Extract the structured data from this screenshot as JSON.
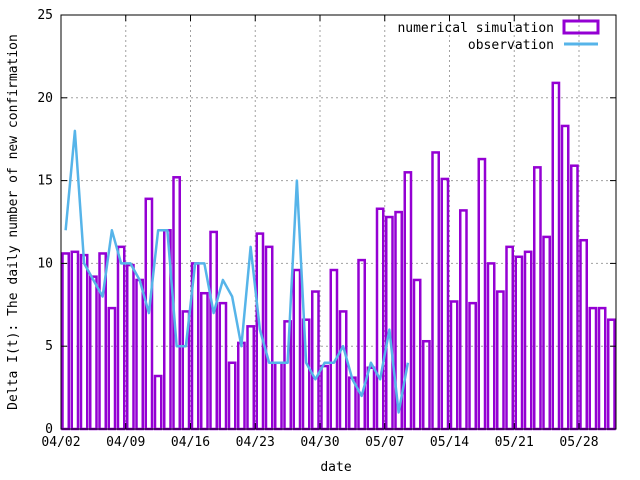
{
  "chart_data": {
    "type": "bar",
    "xlabel": "date",
    "ylabel": "Delta I(t): The daily number of new confirmation",
    "ylim": [
      0,
      25
    ],
    "y_ticks": [
      0,
      5,
      10,
      15,
      20,
      25
    ],
    "x_ticks": [
      "04/02",
      "04/09",
      "04/16",
      "04/23",
      "04/30",
      "05/07",
      "05/14",
      "05/21",
      "05/28"
    ],
    "x_start": "04/02",
    "x_end": "05/31",
    "grid": true,
    "legend_position": "top-right",
    "colors": {
      "simulation": "#9400d3",
      "observation": "#56b4e9"
    },
    "series": [
      {
        "name": "numerical simulation",
        "type": "bar",
        "values": [
          10.6,
          10.7,
          10.5,
          9.2,
          10.6,
          7.3,
          11.0,
          9.9,
          9.0,
          13.9,
          3.2,
          12.0,
          15.2,
          7.1,
          10.0,
          8.2,
          11.9,
          7.6,
          4.0,
          5.2,
          6.2,
          11.8,
          11.0,
          4.0,
          6.5,
          9.6,
          6.6,
          8.3,
          3.8,
          9.6,
          7.1,
          3.1,
          10.2,
          3.7,
          13.3,
          12.8,
          13.1,
          15.5,
          9.0,
          5.3,
          16.7,
          15.1,
          7.7,
          13.2,
          7.6,
          16.3,
          10.0,
          8.3,
          11.0,
          10.4,
          10.7,
          15.8,
          11.6,
          20.9,
          18.3,
          15.9,
          11.4,
          7.3,
          7.3,
          6.6
        ]
      },
      {
        "name": "observation",
        "type": "line",
        "values": [
          12,
          18,
          10,
          9,
          8,
          12,
          10,
          10,
          9,
          7,
          12,
          12,
          5,
          5,
          10,
          10,
          7,
          9,
          8,
          5,
          11,
          6,
          4,
          4,
          4,
          15,
          4,
          3,
          4,
          4,
          5,
          3,
          2,
          4,
          3,
          6,
          1,
          4
        ]
      }
    ]
  }
}
